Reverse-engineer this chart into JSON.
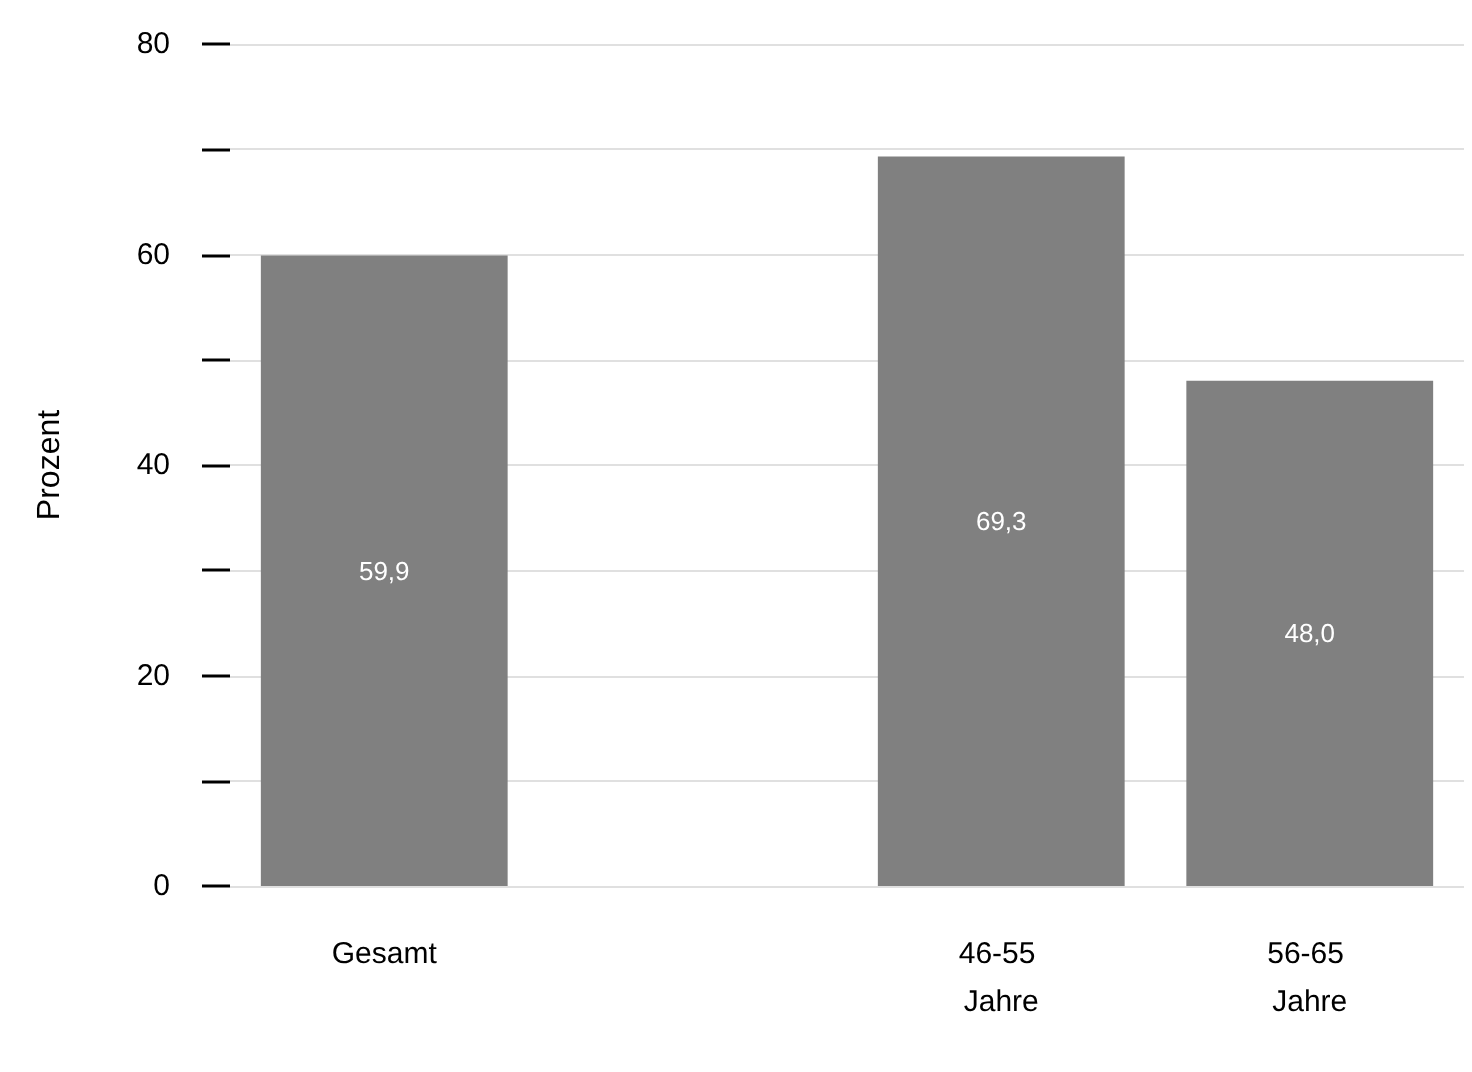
{
  "chart_data": {
    "type": "bar",
    "ylabel": "Prozent",
    "categories": [
      "Gesamt",
      null,
      "46-55 Jahre",
      "56-65 Jahre"
    ],
    "values": [
      59.9,
      null,
      69.3,
      48.0
    ],
    "value_labels": [
      "59,9",
      null,
      "69,3",
      "48,0"
    ],
    "color": "#808080",
    "ylim": [
      0,
      80
    ],
    "yticks": [
      0,
      {
        "value": 10,
        "label": null
      },
      20,
      {
        "value": 30,
        "label": null
      },
      40,
      {
        "value": 50,
        "label": null
      },
      60,
      {
        "value": 70,
        "label": null
      },
      80
    ],
    "grid": "y"
  }
}
